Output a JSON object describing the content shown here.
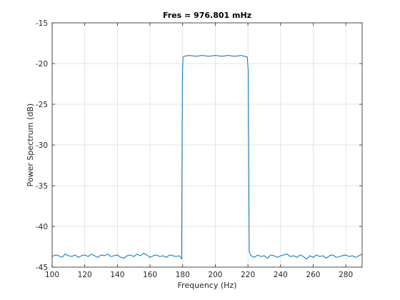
{
  "chart_data": {
    "type": "line",
    "title": "Fres = 976.801 mHz",
    "xlabel": "Frequency (Hz)",
    "ylabel": "Power Spectrum (dB)",
    "xlim": [
      100,
      290
    ],
    "ylim": [
      -45,
      -15
    ],
    "xticks": [
      100,
      120,
      140,
      160,
      180,
      200,
      220,
      240,
      260,
      280
    ],
    "yticks": [
      -15,
      -20,
      -25,
      -30,
      -35,
      -40,
      -45
    ],
    "grid": true,
    "line_color": "#0072BD",
    "series": [
      {
        "x": [
          100,
          102,
          104,
          106,
          108,
          110,
          112,
          114,
          116,
          118,
          120,
          122,
          124,
          126,
          128,
          130,
          132,
          134,
          136,
          138,
          140,
          142,
          144,
          146,
          148,
          150,
          152,
          154,
          156,
          158,
          160,
          162,
          164,
          166,
          168,
          170,
          172,
          174,
          176,
          178,
          179.4,
          179.8,
          180.2,
          181,
          184,
          188,
          192,
          196,
          200,
          204,
          208,
          212,
          216,
          219.6,
          220.2,
          220.8,
          221.4,
          222,
          224,
          226,
          228,
          230,
          232,
          234,
          236,
          238,
          240,
          242,
          244,
          246,
          248,
          250,
          252,
          254,
          256,
          258,
          260,
          262,
          264,
          266,
          268,
          270,
          272,
          274,
          276,
          278,
          280,
          282,
          284,
          286,
          288,
          290
        ],
        "y": [
          -43.7,
          -43.5,
          -43.6,
          -43.8,
          -43.4,
          -43.6,
          -43.7,
          -43.5,
          -43.8,
          -43.6,
          -43.5,
          -43.7,
          -43.4,
          -43.6,
          -43.8,
          -43.5,
          -43.6,
          -43.4,
          -43.7,
          -43.6,
          -43.5,
          -43.8,
          -43.9,
          -43.6,
          -43.5,
          -43.7,
          -43.4,
          -43.6,
          -43.3,
          -43.5,
          -43.8,
          -43.6,
          -43.5,
          -43.7,
          -43.6,
          -43.8,
          -43.5,
          -43.6,
          -43.7,
          -43.6,
          -44.0,
          -22.0,
          -19.2,
          -19.1,
          -19.0,
          -19.1,
          -19.0,
          -19.1,
          -19.0,
          -19.1,
          -19.0,
          -19.1,
          -19.0,
          -19.2,
          -21.0,
          -43.0,
          -43.4,
          -43.6,
          -43.8,
          -43.5,
          -43.7,
          -43.6,
          -43.9,
          -43.5,
          -43.6,
          -43.8,
          -43.6,
          -43.5,
          -43.4,
          -43.7,
          -43.6,
          -43.8,
          -43.5,
          -43.7,
          -44.0,
          -43.6,
          -43.8,
          -43.5,
          -43.7,
          -43.6,
          -43.9,
          -43.6,
          -43.5,
          -43.8,
          -43.7,
          -43.6,
          -43.5,
          -43.7,
          -43.6,
          -43.8,
          -43.6,
          -43.4
        ]
      }
    ]
  }
}
